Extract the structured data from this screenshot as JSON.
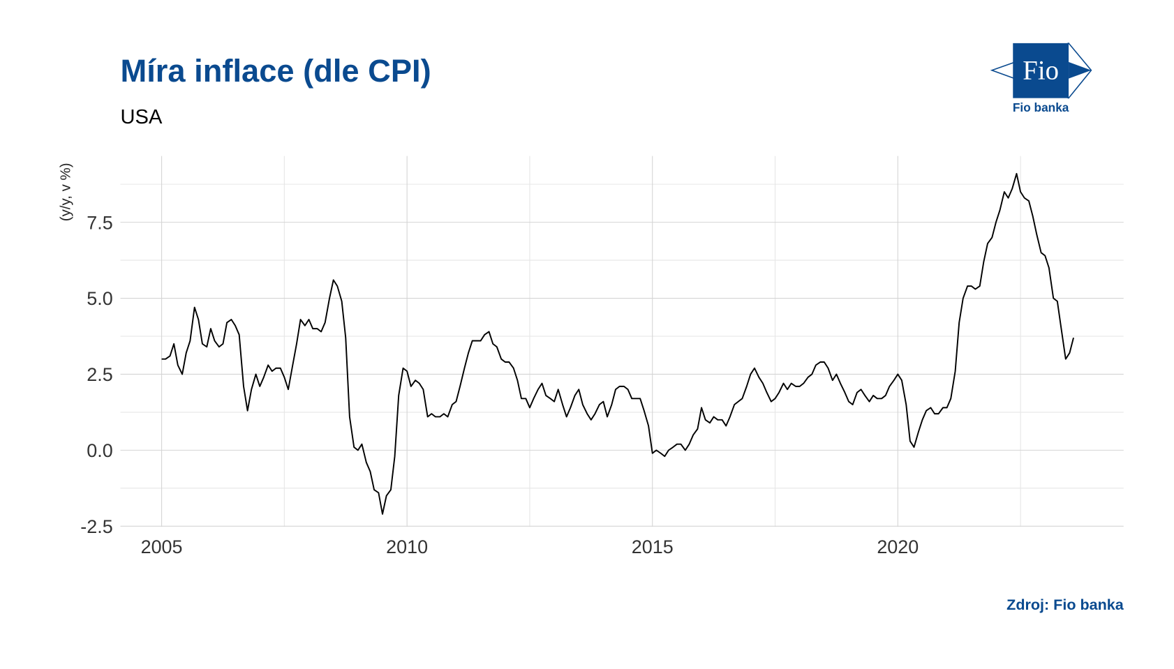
{
  "chart_data": {
    "type": "line",
    "title": "Míra inflace (dle CPI)",
    "subtitle": "USA",
    "y_label": "(y/y, v %)",
    "source": "Zdroj: Fio banka",
    "xlim": [
      2004.16,
      2024.6
    ],
    "xticks": [
      2005,
      2010,
      2015,
      2020
    ],
    "ylim": [
      -2.52,
      9.68
    ],
    "yticks": [
      -2.5,
      {
        "value": 0,
        "label": "0.0"
      },
      2.5,
      {
        "value": 5,
        "label": "5.0"
      },
      7.5
    ],
    "grid": true,
    "x": [
      2005.0,
      2005.08,
      2005.17,
      2005.25,
      2005.33,
      2005.42,
      2005.5,
      2005.58,
      2005.67,
      2005.75,
      2005.83,
      2005.92,
      2006.0,
      2006.08,
      2006.17,
      2006.25,
      2006.33,
      2006.42,
      2006.5,
      2006.58,
      2006.67,
      2006.75,
      2006.83,
      2006.92,
      2007.0,
      2007.08,
      2007.17,
      2007.25,
      2007.33,
      2007.42,
      2007.5,
      2007.58,
      2007.67,
      2007.75,
      2007.83,
      2007.92,
      2008.0,
      2008.08,
      2008.17,
      2008.25,
      2008.33,
      2008.42,
      2008.5,
      2008.58,
      2008.67,
      2008.75,
      2008.83,
      2008.92,
      2009.0,
      2009.08,
      2009.17,
      2009.25,
      2009.33,
      2009.42,
      2009.5,
      2009.58,
      2009.67,
      2009.75,
      2009.83,
      2009.92,
      2010.0,
      2010.08,
      2010.17,
      2010.25,
      2010.33,
      2010.42,
      2010.5,
      2010.58,
      2010.67,
      2010.75,
      2010.83,
      2010.92,
      2011.0,
      2011.08,
      2011.17,
      2011.25,
      2011.33,
      2011.42,
      2011.5,
      2011.58,
      2011.67,
      2011.75,
      2011.83,
      2011.92,
      2012.0,
      2012.08,
      2012.17,
      2012.25,
      2012.33,
      2012.42,
      2012.5,
      2012.58,
      2012.67,
      2012.75,
      2012.83,
      2012.92,
      2013.0,
      2013.08,
      2013.17,
      2013.25,
      2013.33,
      2013.42,
      2013.5,
      2013.58,
      2013.67,
      2013.75,
      2013.83,
      2013.92,
      2014.0,
      2014.08,
      2014.17,
      2014.25,
      2014.33,
      2014.42,
      2014.5,
      2014.58,
      2014.67,
      2014.75,
      2014.83,
      2014.92,
      2015.0,
      2015.08,
      2015.17,
      2015.25,
      2015.33,
      2015.42,
      2015.5,
      2015.58,
      2015.67,
      2015.75,
      2015.83,
      2015.92,
      2016.0,
      2016.08,
      2016.17,
      2016.25,
      2016.33,
      2016.42,
      2016.5,
      2016.58,
      2016.67,
      2016.75,
      2016.83,
      2016.92,
      2017.0,
      2017.08,
      2017.17,
      2017.25,
      2017.33,
      2017.42,
      2017.5,
      2017.58,
      2017.67,
      2017.75,
      2017.83,
      2017.92,
      2018.0,
      2018.08,
      2018.17,
      2018.25,
      2018.33,
      2018.42,
      2018.5,
      2018.58,
      2018.67,
      2018.75,
      2018.83,
      2018.92,
      2019.0,
      2019.08,
      2019.17,
      2019.25,
      2019.33,
      2019.42,
      2019.5,
      2019.58,
      2019.67,
      2019.75,
      2019.83,
      2019.92,
      2020.0,
      2020.08,
      2020.17,
      2020.25,
      2020.33,
      2020.42,
      2020.5,
      2020.58,
      2020.67,
      2020.75,
      2020.83,
      2020.92,
      2021.0,
      2021.08,
      2021.17,
      2021.25,
      2021.33,
      2021.42,
      2021.5,
      2021.58,
      2021.67,
      2021.75,
      2021.83,
      2021.92,
      2022.0,
      2022.08,
      2022.17,
      2022.25,
      2022.33,
      2022.42,
      2022.5,
      2022.58,
      2022.67,
      2022.75,
      2022.83,
      2022.92,
      2023.0,
      2023.08,
      2023.17,
      2023.25,
      2023.33,
      2023.42,
      2023.5,
      2023.58
    ],
    "series": [
      {
        "color": "#000000",
        "values": [
          3.0,
          3.0,
          3.1,
          3.5,
          2.8,
          2.5,
          3.2,
          3.6,
          4.7,
          4.3,
          3.5,
          3.4,
          4.0,
          3.6,
          3.4,
          3.5,
          4.2,
          4.3,
          4.1,
          3.8,
          2.1,
          1.3,
          2.0,
          2.5,
          2.1,
          2.4,
          2.8,
          2.6,
          2.7,
          2.7,
          2.4,
          2.0,
          2.8,
          3.5,
          4.3,
          4.1,
          4.3,
          4.0,
          4.0,
          3.9,
          4.2,
          5.0,
          5.6,
          5.4,
          4.9,
          3.7,
          1.1,
          0.1,
          0.0,
          0.2,
          -0.4,
          -0.7,
          -1.3,
          -1.4,
          -2.1,
          -1.5,
          -1.3,
          -0.2,
          1.8,
          2.7,
          2.6,
          2.1,
          2.3,
          2.2,
          2.0,
          1.1,
          1.2,
          1.1,
          1.1,
          1.2,
          1.1,
          1.5,
          1.6,
          2.1,
          2.7,
          3.2,
          3.6,
          3.6,
          3.6,
          3.8,
          3.9,
          3.5,
          3.4,
          3.0,
          2.9,
          2.9,
          2.7,
          2.3,
          1.7,
          1.7,
          1.4,
          1.7,
          2.0,
          2.2,
          1.8,
          1.7,
          1.6,
          2.0,
          1.5,
          1.1,
          1.4,
          1.8,
          2.0,
          1.5,
          1.2,
          1.0,
          1.2,
          1.5,
          1.6,
          1.1,
          1.5,
          2.0,
          2.1,
          2.1,
          2.0,
          1.7,
          1.7,
          1.7,
          1.3,
          0.8,
          -0.1,
          0.0,
          -0.1,
          -0.2,
          0.0,
          0.1,
          0.2,
          0.2,
          0.0,
          0.2,
          0.5,
          0.7,
          1.4,
          1.0,
          0.9,
          1.1,
          1.0,
          1.0,
          0.8,
          1.1,
          1.5,
          1.6,
          1.7,
          2.1,
          2.5,
          2.7,
          2.4,
          2.2,
          1.9,
          1.6,
          1.7,
          1.9,
          2.2,
          2.0,
          2.2,
          2.1,
          2.1,
          2.2,
          2.4,
          2.5,
          2.8,
          2.9,
          2.9,
          2.7,
          2.3,
          2.5,
          2.2,
          1.9,
          1.6,
          1.5,
          1.9,
          2.0,
          1.8,
          1.6,
          1.8,
          1.7,
          1.7,
          1.8,
          2.1,
          2.3,
          2.5,
          2.3,
          1.5,
          0.3,
          0.1,
          0.6,
          1.0,
          1.3,
          1.4,
          1.2,
          1.2,
          1.4,
          1.4,
          1.7,
          2.6,
          4.2,
          5.0,
          5.4,
          5.4,
          5.3,
          5.4,
          6.2,
          6.8,
          7.0,
          7.5,
          7.9,
          8.5,
          8.3,
          8.6,
          9.1,
          8.5,
          8.3,
          8.2,
          7.7,
          7.1,
          6.5,
          6.4,
          6.0,
          5.0,
          4.9,
          4.0,
          3.0,
          3.2,
          3.7
        ]
      }
    ]
  },
  "logo": {
    "text": "Fio",
    "caption": "Fio banka"
  }
}
